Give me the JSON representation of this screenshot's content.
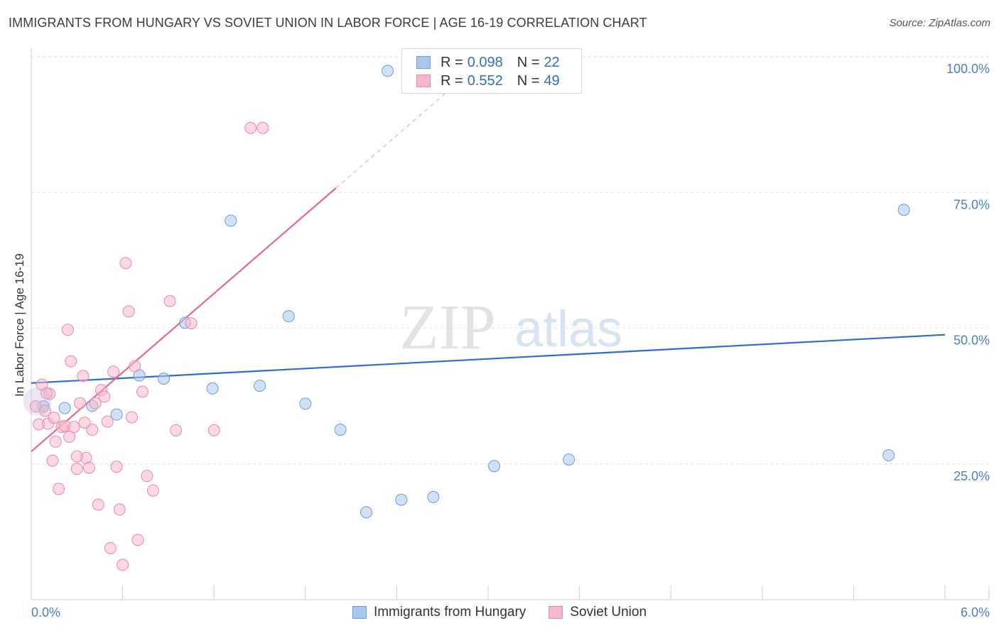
{
  "header": {
    "title": "IMMIGRANTS FROM HUNGARY VS SOVIET UNION IN LABOR FORCE | AGE 16-19 CORRELATION CHART",
    "source": "Source: ZipAtlas.com"
  },
  "watermark": {
    "zip": "ZIP",
    "atlas": "atlas"
  },
  "legend": {
    "r_label": "R =",
    "n_label": "N =",
    "rows": [
      {
        "r": "0.098",
        "n": "22",
        "color": "#a9c8f0",
        "border": "#6d9bd6"
      },
      {
        "r": "0.552",
        "n": "49",
        "color": "#f7b8cb",
        "border": "#e58aa6"
      }
    ]
  },
  "chart_data": {
    "type": "scatter",
    "title": "IMMIGRANTS FROM HUNGARY VS SOVIET UNION IN LABOR FORCE | AGE 16-19 CORRELATION CHART",
    "ylabel": "In Labor Force | Age 16-19",
    "xlabel": "",
    "xlim": [
      0,
      6.0
    ],
    "ylim": [
      0,
      100
    ],
    "x_tick_labels": [
      "0.0%",
      "6.0%"
    ],
    "y_tick_labels": [
      "25.0%",
      "50.0%",
      "75.0%",
      "100.0%"
    ],
    "y_ticks": [
      25,
      50,
      75,
      100
    ],
    "grid": true,
    "series": [
      {
        "name": "Immigrants from Hungary",
        "color": "#a9c8f0",
        "stroke": "#6d9bd6",
        "line_color": "#2f6fcc",
        "trend": {
          "x0": 0,
          "y0": 39.9,
          "x1": 6.0,
          "y1": 48.8
        },
        "points": [
          [
            0.08,
            35.6
          ],
          [
            0.22,
            35.3
          ],
          [
            0.4,
            35.7
          ],
          [
            0.56,
            34.1
          ],
          [
            0.71,
            41.3
          ],
          [
            0.87,
            40.7
          ],
          [
            1.01,
            51.0
          ],
          [
            1.19,
            38.9
          ],
          [
            1.31,
            69.8
          ],
          [
            1.5,
            39.4
          ],
          [
            1.69,
            52.2
          ],
          [
            1.8,
            36.1
          ],
          [
            2.03,
            31.3
          ],
          [
            2.2,
            16.1
          ],
          [
            2.34,
            97.4
          ],
          [
            2.43,
            18.4
          ],
          [
            2.64,
            18.9
          ],
          [
            3.04,
            24.6
          ],
          [
            3.53,
            25.8
          ],
          [
            5.63,
            26.6
          ],
          [
            5.73,
            71.8
          ],
          [
            2.98,
            100.0
          ]
        ]
      },
      {
        "name": "Soviet Union",
        "color": "#f7b8cb",
        "stroke": "#e58aa6",
        "line_color": "#e8668e",
        "trend": {
          "x0": 0,
          "y0": 27.3,
          "x1": 2.0,
          "y1": 75.8
        },
        "trend_dash_end": {
          "x1": 2.75,
          "y1": 94.0
        },
        "points": [
          [
            0.03,
            35.6
          ],
          [
            0.05,
            32.3
          ],
          [
            0.07,
            39.6
          ],
          [
            0.09,
            34.8
          ],
          [
            0.11,
            32.4
          ],
          [
            0.12,
            37.9
          ],
          [
            0.14,
            25.6
          ],
          [
            0.16,
            29.1
          ],
          [
            0.18,
            20.4
          ],
          [
            0.2,
            31.8
          ],
          [
            0.22,
            32.0
          ],
          [
            0.24,
            49.7
          ],
          [
            0.26,
            43.9
          ],
          [
            0.28,
            31.8
          ],
          [
            0.3,
            24.1
          ],
          [
            0.32,
            36.2
          ],
          [
            0.34,
            41.2
          ],
          [
            0.36,
            26.1
          ],
          [
            0.38,
            24.3
          ],
          [
            0.4,
            31.3
          ],
          [
            0.42,
            36.2
          ],
          [
            0.44,
            17.5
          ],
          [
            0.46,
            38.6
          ],
          [
            0.48,
            37.4
          ],
          [
            0.5,
            32.8
          ],
          [
            0.52,
            9.5
          ],
          [
            0.54,
            42.0
          ],
          [
            0.56,
            24.5
          ],
          [
            0.58,
            16.6
          ],
          [
            0.6,
            6.4
          ],
          [
            0.62,
            62.0
          ],
          [
            0.64,
            53.1
          ],
          [
            0.66,
            33.6
          ],
          [
            0.68,
            43.0
          ],
          [
            0.7,
            11.0
          ],
          [
            0.73,
            38.3
          ],
          [
            0.76,
            22.8
          ],
          [
            0.8,
            20.1
          ],
          [
            0.91,
            55.0
          ],
          [
            0.95,
            31.2
          ],
          [
            1.05,
            50.9
          ],
          [
            1.2,
            31.2
          ],
          [
            1.44,
            86.9
          ],
          [
            1.52,
            86.9
          ],
          [
            0.1,
            38.0
          ],
          [
            0.15,
            33.5
          ],
          [
            0.25,
            30.0
          ],
          [
            0.3,
            26.4
          ],
          [
            0.35,
            32.6
          ]
        ]
      }
    ]
  }
}
